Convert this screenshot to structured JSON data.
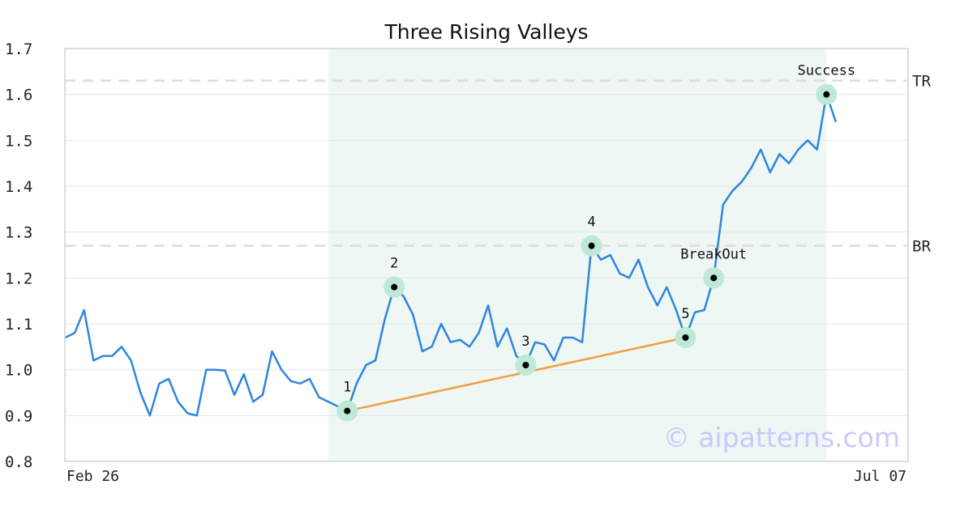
{
  "chart_data": {
    "type": "line",
    "title": "Three Rising Valleys",
    "xlabel": "",
    "ylabel": "",
    "ylim": [
      0.8,
      1.7
    ],
    "yticks": [
      "0.8",
      "0.9",
      "1.0",
      "1.1",
      "1.2",
      "1.3",
      "1.4",
      "1.5",
      "1.6",
      "1.7"
    ],
    "xtick_labels": [
      "Feb 26",
      "Jul 07"
    ],
    "grid": "horizontal",
    "series": [
      {
        "values": [
          1.07,
          1.08,
          1.13,
          1.02,
          1.03,
          1.03,
          1.05,
          1.02,
          0.95,
          0.9,
          0.97,
          0.98,
          0.93,
          0.905,
          0.9,
          1.0,
          1.0,
          0.998,
          0.945,
          0.99,
          0.93,
          0.945,
          1.04,
          1.0,
          0.975,
          0.97,
          0.98,
          0.94,
          0.93,
          0.92,
          0.91,
          0.97,
          1.01,
          1.02,
          1.11,
          1.18,
          1.16,
          1.12,
          1.04,
          1.05,
          1.1,
          1.06,
          1.065,
          1.05,
          1.08,
          1.14,
          1.05,
          1.09,
          1.03,
          1.01,
          1.06,
          1.055,
          1.02,
          1.07,
          1.07,
          1.06,
          1.27,
          1.24,
          1.25,
          1.21,
          1.2,
          1.24,
          1.18,
          1.14,
          1.18,
          1.13,
          1.07,
          1.125,
          1.13,
          1.2,
          1.36,
          1.39,
          1.41,
          1.44,
          1.48,
          1.43,
          1.47,
          1.45,
          1.48,
          1.5,
          1.48,
          1.6,
          1.54
        ]
      }
    ],
    "pattern_region": {
      "start_index": 28,
      "end_index": 81
    },
    "reference_lines": [
      {
        "label": "TR",
        "value": 1.63
      },
      {
        "label": "BR",
        "value": 1.27
      }
    ],
    "trendline": {
      "from_index": 30,
      "to_index": 66
    },
    "key_points": [
      {
        "label": "1",
        "index": 30,
        "value": 0.91
      },
      {
        "label": "2",
        "index": 35,
        "value": 1.18
      },
      {
        "label": "3",
        "index": 49,
        "value": 1.01
      },
      {
        "label": "4",
        "index": 56,
        "value": 1.27
      },
      {
        "label": "5",
        "index": 66,
        "value": 1.07
      },
      {
        "label": "BreakOut",
        "index": 69,
        "value": 1.2
      },
      {
        "label": "Success",
        "index": 81,
        "value": 1.6
      }
    ],
    "watermark": "© aipatterns.com",
    "colors": {
      "line": "#2e86de",
      "trendline": "#f39c40",
      "highlight": "#eef7f3",
      "marker_halo": "#bfe8d6",
      "marker": "#000000",
      "grid": "#e6e6e6",
      "reference": "#dcdcdc"
    }
  }
}
